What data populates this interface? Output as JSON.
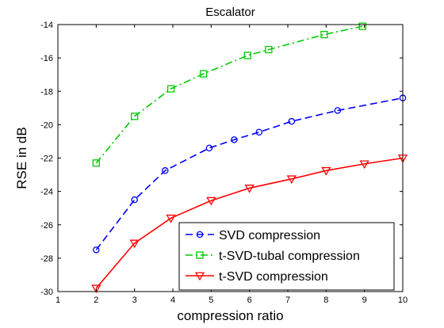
{
  "chart_data": {
    "type": "line",
    "title": "Escalator",
    "xlabel": "compression ratio",
    "ylabel": "RSE in dB",
    "xlim": [
      1,
      10
    ],
    "ylim": [
      -30,
      -14
    ],
    "xticks": [
      "1",
      "2",
      "3",
      "4",
      "5",
      "6",
      "7",
      "8",
      "9",
      "10"
    ],
    "yticks": [
      "-30",
      "-28",
      "-26",
      "-24",
      "-22",
      "-20",
      "-18",
      "-16",
      "-14"
    ],
    "grid": false,
    "legend_position": "bottom-right",
    "series": [
      {
        "name": "SVD compression",
        "color": "#0000ff",
        "line_style": "dashed",
        "marker": "circle",
        "x": [
          2,
          3,
          3.8,
          4.95,
          5.6,
          6.25,
          7.1,
          8.3,
          10
        ],
        "y": [
          -27.5,
          -24.5,
          -22.75,
          -21.4,
          -20.9,
          -20.45,
          -19.8,
          -19.15,
          -18.4
        ]
      },
      {
        "name": "t-SVD-tubal compression",
        "color": "#00cc00",
        "line_style": "dash-dot",
        "marker": "square",
        "x": [
          2,
          3,
          3.95,
          4.8,
          5.95,
          6.5,
          7.95,
          8.95
        ],
        "y": [
          -22.3,
          -19.5,
          -17.85,
          -16.95,
          -15.85,
          -15.5,
          -14.6,
          -14.1
        ]
      },
      {
        "name": "t-SVD compression",
        "color": "#ff0000",
        "line_style": "solid",
        "marker": "triangle-down",
        "x": [
          2,
          3,
          3.95,
          5,
          6,
          7.1,
          8,
          9,
          10
        ],
        "y": [
          -29.8,
          -27.1,
          -25.6,
          -24.55,
          -23.8,
          -23.25,
          -22.75,
          -22.35,
          -22.0
        ]
      }
    ]
  }
}
